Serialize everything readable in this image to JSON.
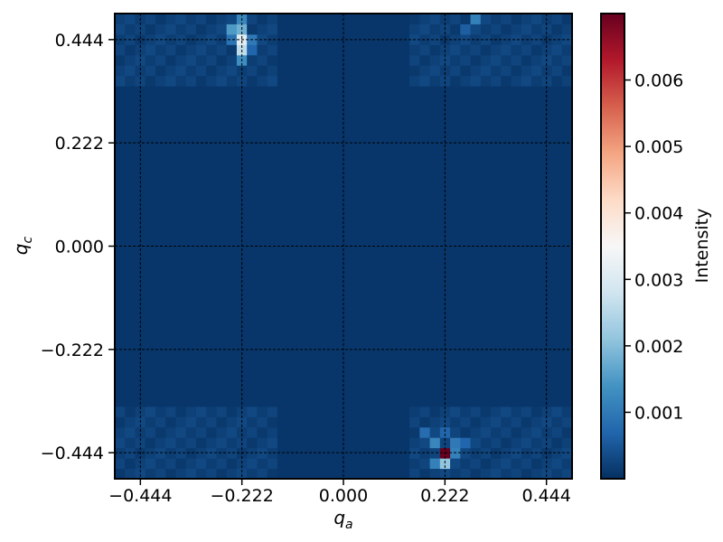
{
  "chart_data": {
    "type": "heatmap",
    "title": "",
    "xlabel": {
      "base": "q",
      "sub": "a"
    },
    "ylabel": {
      "base": "q",
      "sub": "c"
    },
    "x_range": [
      -0.5,
      0.5
    ],
    "y_range": [
      -0.5,
      0.5
    ],
    "x_ticks": [
      -0.444,
      -0.222,
      0.0,
      0.222,
      0.444
    ],
    "y_ticks": [
      -0.444,
      -0.222,
      0.0,
      0.222,
      0.444
    ],
    "x_tick_labels": [
      "−0.444",
      "−0.222",
      "0.000",
      "0.222",
      "0.444"
    ],
    "y_tick_labels": [
      "−0.444",
      "−0.222",
      "0.000",
      "0.222",
      "0.444"
    ],
    "grid": true,
    "grid_style": "dashed",
    "colormap": "RdBu_r",
    "colorbar": {
      "label": "Intensity",
      "range": [
        0,
        0.007
      ],
      "ticks": [
        0.001,
        0.002,
        0.003,
        0.004,
        0.005,
        0.006
      ],
      "tick_labels": [
        "0.001",
        "0.002",
        "0.003",
        "0.004",
        "0.005",
        "0.006"
      ],
      "placement": "right"
    },
    "grid_cells": 45,
    "background_intensity": 8e-05,
    "peaks": [
      {
        "qa": 0.222,
        "qc": -0.444,
        "intensity": 0.007
      },
      {
        "qa": 0.222,
        "qc": -0.466,
        "intensity": 0.0021
      },
      {
        "qa": 0.2,
        "qc": -0.422,
        "intensity": 0.0012
      },
      {
        "qa": 0.244,
        "qc": -0.422,
        "intensity": 0.001
      },
      {
        "qa": 0.244,
        "qc": -0.444,
        "intensity": 0.0011
      },
      {
        "qa": 0.2,
        "qc": -0.466,
        "intensity": 0.0011
      },
      {
        "qa": 0.178,
        "qc": -0.4,
        "intensity": 0.0008
      },
      {
        "qa": 0.266,
        "qc": -0.422,
        "intensity": 0.0007
      },
      {
        "qa": 0.222,
        "qc": -0.4,
        "intensity": 0.0007
      },
      {
        "qa": -0.222,
        "qc": 0.444,
        "intensity": 0.0031
      },
      {
        "qa": -0.222,
        "qc": 0.422,
        "intensity": 0.0026
      },
      {
        "qa": -0.222,
        "qc": 0.466,
        "intensity": 0.0018
      },
      {
        "qa": -0.244,
        "qc": 0.466,
        "intensity": 0.0015
      },
      {
        "qa": -0.222,
        "qc": 0.4,
        "intensity": 0.0013
      },
      {
        "qa": -0.2,
        "qc": 0.444,
        "intensity": 0.001
      },
      {
        "qa": -0.244,
        "qc": 0.444,
        "intensity": 0.0009
      },
      {
        "qa": -0.222,
        "qc": 0.488,
        "intensity": 0.0012
      },
      {
        "qa": -0.2,
        "qc": 0.422,
        "intensity": 0.0007
      },
      {
        "qa": 0.288,
        "qc": 0.488,
        "intensity": 0.0011
      },
      {
        "qa": 0.266,
        "qc": 0.466,
        "intensity": 0.0006
      }
    ]
  }
}
